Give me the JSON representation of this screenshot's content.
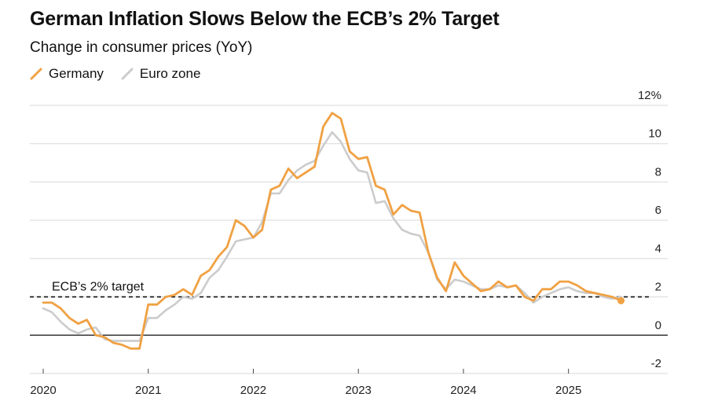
{
  "chart_data": {
    "type": "line",
    "title": "German Inflation Slows Below the ECB’s 2% Target",
    "subtitle": "Change in consumer prices (YoY)",
    "y_unit": "%",
    "ylim": [
      -2,
      12
    ],
    "y_ticks": [
      -2,
      0,
      2,
      4,
      6,
      8,
      10,
      12
    ],
    "y_tick_labels": [
      "-2",
      "0",
      "2",
      "4",
      "6",
      "8",
      "10",
      "12%"
    ],
    "x_tick_labels": [
      "2020",
      "2021",
      "2022",
      "2023",
      "2024",
      "2025"
    ],
    "x_range": [
      2020.0,
      2025.75
    ],
    "grid": true,
    "legend_position": "top-left",
    "series": [
      {
        "name": "Germany",
        "color": "#f0a143",
        "start": 2020.0,
        "step_months": 1,
        "values": [
          1.7,
          1.7,
          1.4,
          0.9,
          0.6,
          0.8,
          0.0,
          -0.1,
          -0.4,
          -0.5,
          -0.7,
          -0.7,
          1.6,
          1.6,
          2.0,
          2.1,
          2.4,
          2.1,
          3.1,
          3.4,
          4.1,
          4.6,
          6.0,
          5.7,
          5.1,
          5.5,
          7.6,
          7.8,
          8.7,
          8.2,
          8.5,
          8.8,
          10.9,
          11.6,
          11.3,
          9.6,
          9.2,
          9.3,
          7.8,
          7.6,
          6.3,
          6.8,
          6.5,
          6.4,
          4.3,
          3.0,
          2.3,
          3.8,
          3.1,
          2.7,
          2.3,
          2.4,
          2.8,
          2.5,
          2.6,
          2.0,
          1.8,
          2.4,
          2.4,
          2.8,
          2.8,
          2.6,
          2.3,
          2.2,
          2.1,
          2.0,
          1.8
        ],
        "end_marker": true
      },
      {
        "name": "Euro zone",
        "color": "#cccccc",
        "start": 2020.0,
        "step_months": 1,
        "values": [
          1.4,
          1.2,
          0.7,
          0.3,
          0.1,
          0.3,
          0.4,
          -0.2,
          -0.3,
          -0.3,
          -0.3,
          -0.3,
          0.9,
          0.9,
          1.3,
          1.6,
          2.0,
          1.9,
          2.2,
          3.0,
          3.4,
          4.1,
          4.9,
          5.0,
          5.1,
          5.9,
          7.4,
          7.4,
          8.1,
          8.6,
          8.9,
          9.1,
          9.9,
          10.6,
          10.1,
          9.2,
          8.6,
          8.5,
          6.9,
          7.0,
          6.1,
          5.5,
          5.3,
          5.2,
          4.3,
          2.9,
          2.4,
          2.9,
          2.8,
          2.6,
          2.4,
          2.4,
          2.6,
          2.5,
          2.6,
          2.2,
          1.7,
          2.0,
          2.2,
          2.4,
          2.5,
          2.3,
          2.2,
          2.2,
          2.0,
          1.9,
          2.0
        ]
      }
    ],
    "reference_line": {
      "value": 2,
      "label": "ECB’s 2% target",
      "style": "dashed"
    }
  }
}
